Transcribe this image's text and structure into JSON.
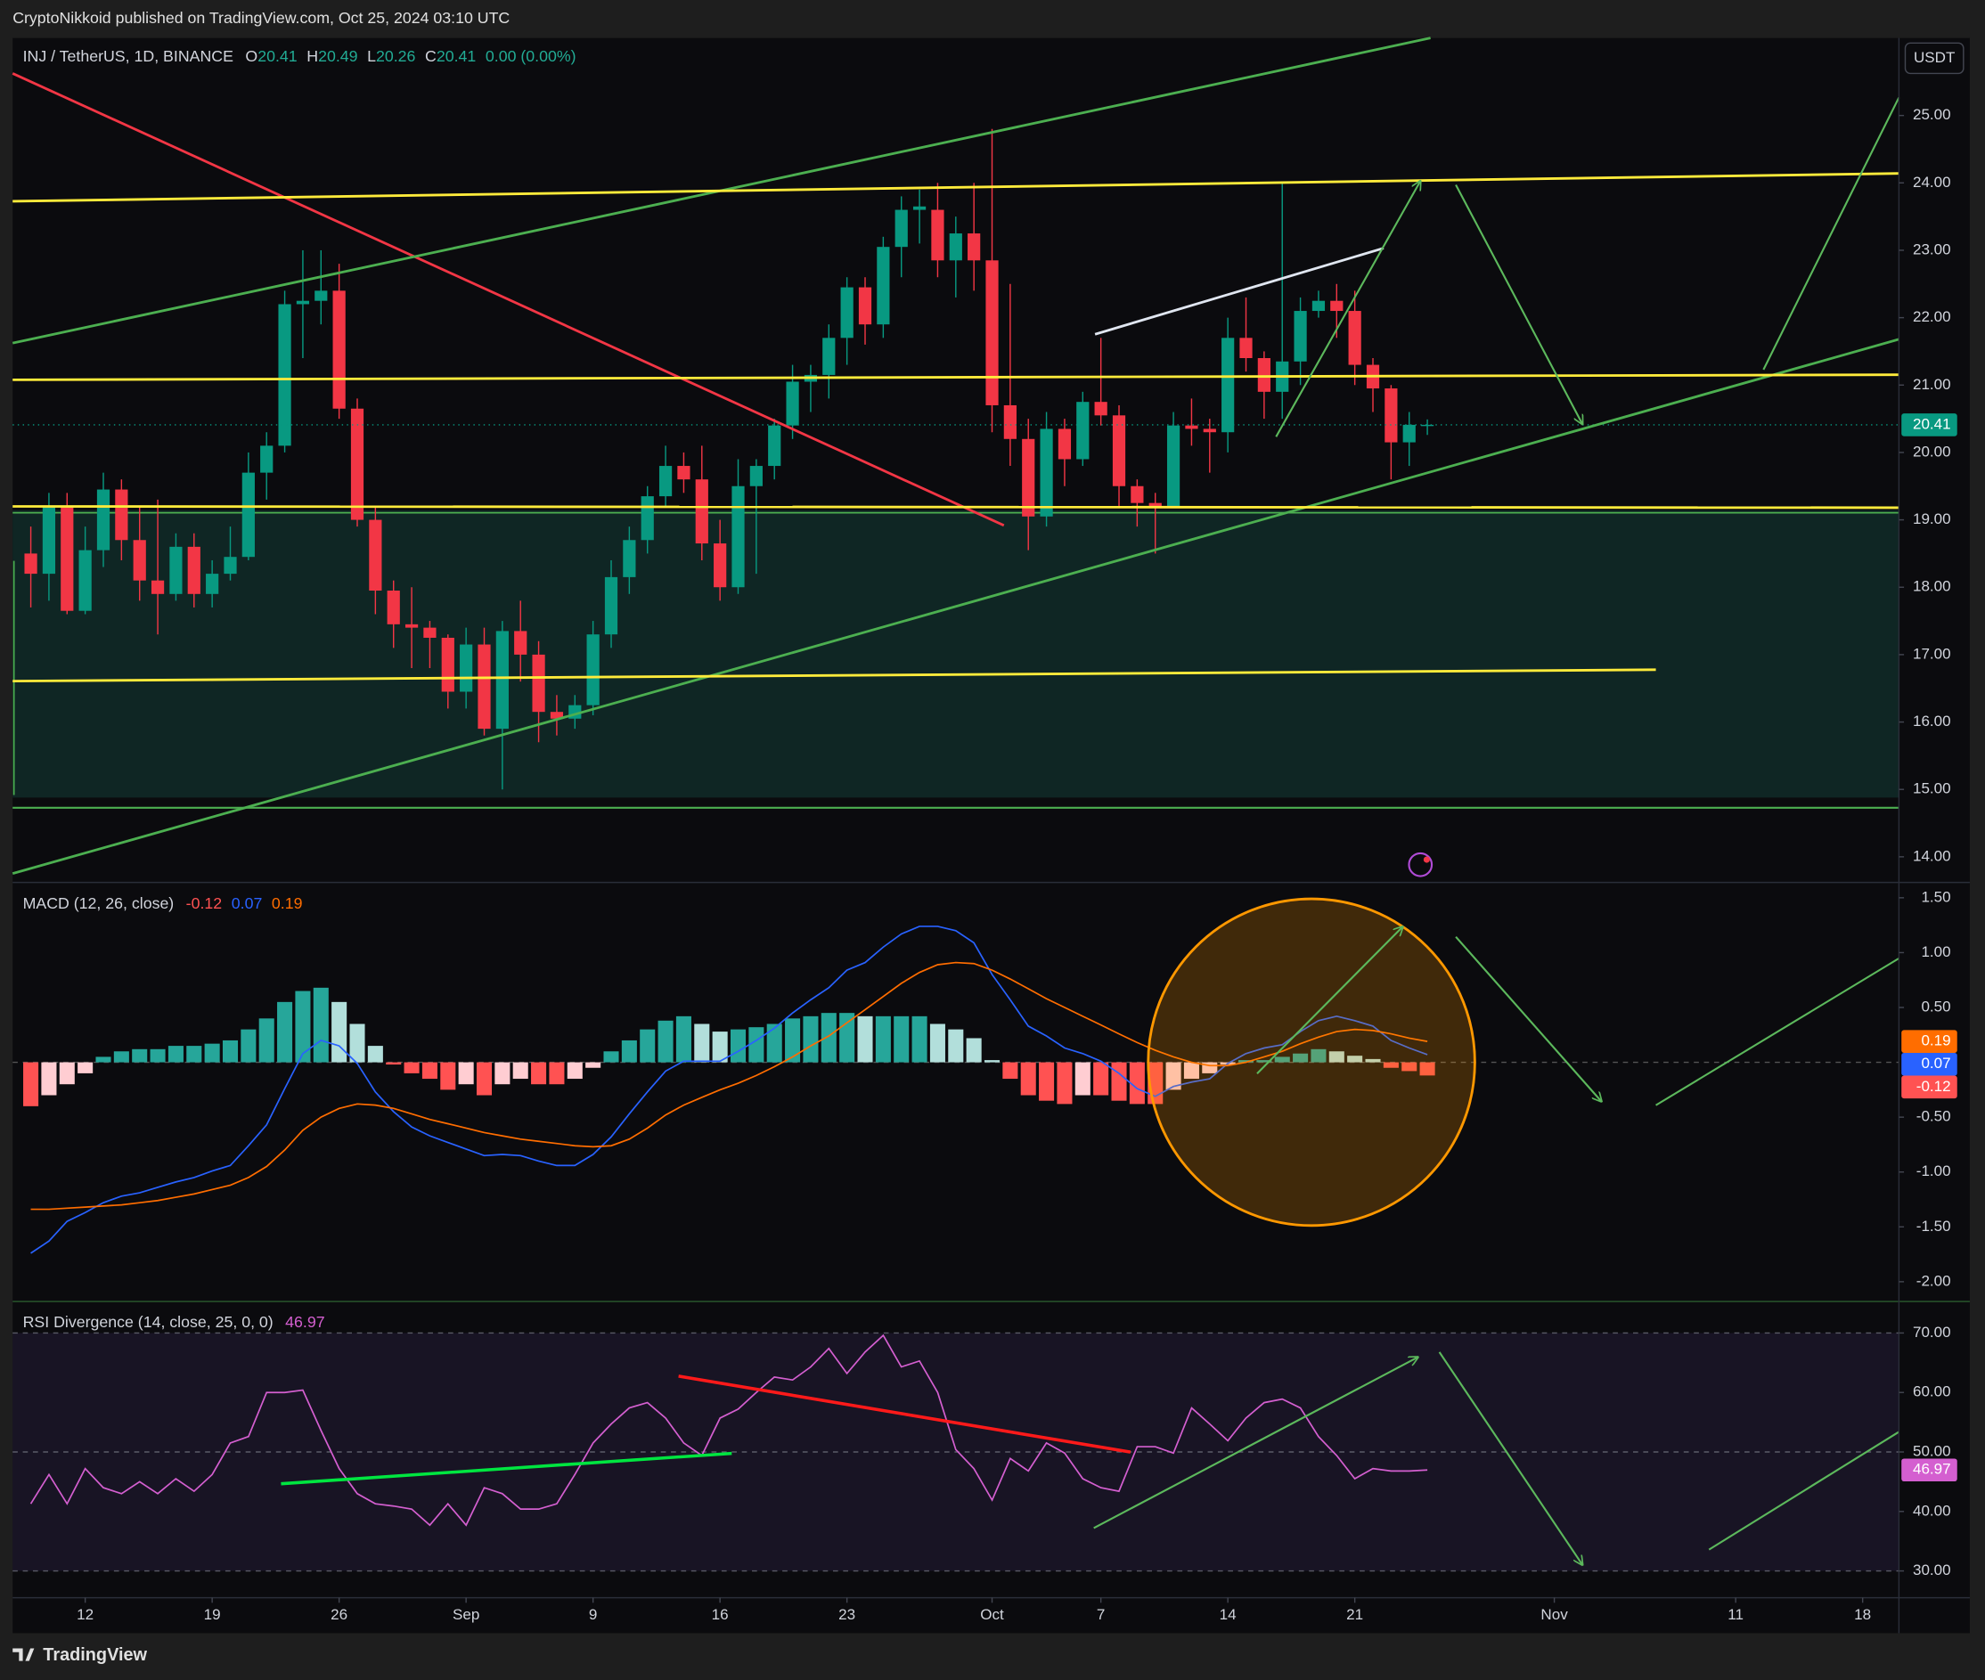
{
  "header": {
    "publisher": "CryptoNikkoid published on TradingView.com, Oct 25, 2024 03:10 UTC"
  },
  "footer": {
    "logo": "TradingView"
  },
  "chart_data": {
    "type": "candlestick",
    "title": "INJ / TetherUS, 1D, BINANCE",
    "ohlc_labels": [
      "O",
      "H",
      "L",
      "C"
    ],
    "change": "0.00 (0.00%)",
    "currency": "USDT",
    "up_color": "#089981",
    "down_color": "#f23645",
    "x": [
      "2024-08-09",
      "2024-08-10",
      "2024-08-11",
      "2024-08-12",
      "2024-08-13",
      "2024-08-14",
      "2024-08-15",
      "2024-08-16",
      "2024-08-17",
      "2024-08-18",
      "2024-08-19",
      "2024-08-20",
      "2024-08-21",
      "2024-08-22",
      "2024-08-23",
      "2024-08-24",
      "2024-08-25",
      "2024-08-26",
      "2024-08-27",
      "2024-08-28",
      "2024-08-29",
      "2024-08-30",
      "2024-08-31",
      "2024-09-01",
      "2024-09-02",
      "2024-09-03",
      "2024-09-04",
      "2024-09-05",
      "2024-09-06",
      "2024-09-07",
      "2024-09-08",
      "2024-09-09",
      "2024-09-10",
      "2024-09-11",
      "2024-09-12",
      "2024-09-13",
      "2024-09-14",
      "2024-09-15",
      "2024-09-16",
      "2024-09-17",
      "2024-09-18",
      "2024-09-19",
      "2024-09-20",
      "2024-09-21",
      "2024-09-22",
      "2024-09-23",
      "2024-09-24",
      "2024-09-25",
      "2024-09-26",
      "2024-09-27",
      "2024-09-28",
      "2024-09-29",
      "2024-09-30",
      "2024-10-01",
      "2024-10-02",
      "2024-10-03",
      "2024-10-04",
      "2024-10-05",
      "2024-10-06",
      "2024-10-07",
      "2024-10-08",
      "2024-10-09",
      "2024-10-10",
      "2024-10-11",
      "2024-10-12",
      "2024-10-13",
      "2024-10-14",
      "2024-10-15",
      "2024-10-16",
      "2024-10-17",
      "2024-10-18",
      "2024-10-19",
      "2024-10-20",
      "2024-10-21",
      "2024-10-22",
      "2024-10-23",
      "2024-10-24",
      "2024-10-25"
    ],
    "open": [
      18.5,
      18.2,
      19.2,
      17.65,
      18.55,
      19.45,
      18.7,
      18.1,
      17.9,
      18.6,
      17.9,
      18.2,
      18.45,
      19.7,
      20.1,
      22.2,
      22.25,
      22.4,
      20.65,
      19.0,
      17.95,
      17.45,
      17.4,
      17.25,
      16.45,
      17.15,
      15.9,
      17.35,
      17.0,
      16.15,
      16.05,
      16.25,
      17.3,
      18.15,
      18.7,
      19.35,
      19.8,
      19.6,
      18.65,
      18.0,
      19.5,
      19.8,
      20.4,
      21.05,
      21.15,
      21.7,
      22.45,
      21.9,
      23.05,
      23.6,
      23.6,
      22.85,
      23.25,
      22.85,
      20.7,
      20.2,
      19.05,
      20.35,
      19.9,
      20.75,
      20.55,
      19.5,
      19.25,
      19.2,
      20.4,
      20.35,
      20.3,
      21.7,
      21.4,
      20.9,
      21.35,
      22.1,
      22.25,
      22.1,
      21.3,
      20.95,
      20.15,
      20.41
    ],
    "high": [
      18.9,
      19.4,
      19.4,
      18.9,
      19.7,
      19.6,
      19.2,
      19.3,
      18.8,
      18.8,
      18.4,
      18.9,
      20.0,
      20.3,
      22.4,
      23.0,
      23.0,
      22.8,
      20.8,
      19.2,
      18.1,
      18.0,
      17.5,
      17.3,
      17.4,
      17.4,
      17.5,
      17.8,
      17.2,
      16.4,
      16.4,
      17.5,
      18.4,
      18.9,
      19.5,
      20.1,
      20.0,
      20.1,
      19.0,
      19.9,
      19.9,
      20.5,
      21.3,
      21.3,
      21.9,
      22.6,
      22.6,
      23.2,
      23.8,
      23.9,
      24.0,
      23.5,
      24.0,
      24.8,
      22.5,
      20.5,
      20.6,
      20.5,
      20.9,
      21.7,
      20.7,
      19.6,
      19.4,
      20.6,
      20.8,
      20.5,
      22.0,
      22.3,
      21.5,
      24.0,
      22.3,
      22.4,
      22.5,
      22.4,
      21.4,
      21.0,
      20.6,
      20.49
    ],
    "low": [
      17.7,
      17.8,
      17.6,
      17.6,
      18.3,
      18.4,
      17.8,
      17.3,
      17.8,
      17.7,
      17.7,
      18.1,
      18.4,
      19.3,
      20.0,
      21.4,
      21.9,
      20.5,
      18.9,
      17.6,
      17.1,
      16.8,
      16.8,
      16.2,
      16.2,
      15.8,
      15.0,
      16.6,
      15.7,
      15.8,
      15.9,
      16.1,
      17.1,
      17.9,
      18.5,
      19.2,
      19.4,
      18.4,
      17.8,
      17.9,
      18.2,
      19.6,
      20.2,
      20.6,
      20.8,
      21.3,
      21.6,
      21.7,
      22.6,
      23.1,
      22.6,
      22.3,
      22.4,
      20.3,
      19.8,
      18.55,
      18.9,
      19.5,
      19.8,
      20.4,
      19.2,
      18.9,
      18.5,
      19.2,
      20.1,
      19.7,
      20.0,
      21.2,
      20.5,
      20.5,
      21.0,
      22.0,
      21.7,
      21.0,
      20.6,
      19.6,
      19.8,
      20.26
    ],
    "close": [
      18.2,
      19.2,
      17.65,
      18.55,
      19.45,
      18.7,
      18.1,
      17.9,
      18.6,
      17.9,
      18.2,
      18.45,
      19.7,
      20.1,
      22.2,
      22.25,
      22.4,
      20.65,
      19.0,
      17.95,
      17.45,
      17.4,
      17.25,
      16.45,
      17.15,
      15.9,
      17.35,
      17.0,
      16.15,
      16.05,
      16.25,
      17.3,
      18.15,
      18.7,
      19.35,
      19.8,
      19.6,
      18.65,
      18.0,
      19.5,
      19.8,
      20.4,
      21.05,
      21.15,
      21.7,
      22.45,
      21.9,
      23.05,
      23.6,
      23.65,
      22.85,
      23.25,
      22.85,
      20.7,
      20.2,
      19.05,
      20.35,
      19.9,
      20.75,
      20.55,
      19.5,
      19.25,
      19.2,
      20.4,
      20.35,
      20.3,
      21.7,
      21.4,
      20.9,
      21.35,
      22.1,
      22.25,
      22.1,
      21.3,
      20.95,
      20.15,
      20.41,
      20.41
    ],
    "xlim": [
      "2024-08-08",
      "2024-11-20"
    ],
    "xticks": [
      {
        "value": "2024-08-12",
        "label": "12"
      },
      {
        "value": "2024-08-19",
        "label": "19"
      },
      {
        "value": "2024-08-26",
        "label": "26"
      },
      {
        "value": "2024-09-02",
        "label": "Sep"
      },
      {
        "value": "2024-09-09",
        "label": "9"
      },
      {
        "value": "2024-09-16",
        "label": "16"
      },
      {
        "value": "2024-09-23",
        "label": "23"
      },
      {
        "value": "2024-10-01",
        "label": "Oct"
      },
      {
        "value": "2024-10-07",
        "label": "7"
      },
      {
        "value": "2024-10-14",
        "label": "14"
      },
      {
        "value": "2024-10-21",
        "label": "21"
      },
      {
        "value": "2024-11-01",
        "label": "Nov"
      },
      {
        "value": "2024-11-11",
        "label": "11"
      },
      {
        "value": "2024-11-18",
        "label": "18"
      }
    ],
    "ylim": [
      13.62,
      26.15
    ],
    "yticks": [
      {
        "value": 14,
        "label": "14.00"
      },
      {
        "value": 15,
        "label": "15.00"
      },
      {
        "value": 16,
        "label": "16.00"
      },
      {
        "value": 17,
        "label": "17.00"
      },
      {
        "value": 18,
        "label": "18.00"
      },
      {
        "value": 19,
        "label": "19.00"
      },
      {
        "value": 20,
        "label": "20.00"
      },
      {
        "value": 21,
        "label": "21.00"
      },
      {
        "value": 22,
        "label": "22.00"
      },
      {
        "value": 23,
        "label": "23.00"
      },
      {
        "value": 24,
        "label": "24.00"
      },
      {
        "value": 25,
        "label": "25.00"
      }
    ],
    "indicators": [
      {
        "type": "macd",
        "title": "MACD (12, 26, close)",
        "ylim": [
          -2.18,
          1.64
        ],
        "yticks": [
          {
            "value": 1.5,
            "label": "1.50"
          },
          {
            "value": 1,
            "label": "1.00"
          },
          {
            "value": 0.5,
            "label": "0.50"
          },
          {
            "value": -0.5,
            "label": "-0.50"
          },
          {
            "value": -1,
            "label": "-1.00"
          },
          {
            "value": -1.5,
            "label": "-1.50"
          },
          {
            "value": -2,
            "label": "-2.00"
          }
        ],
        "zero_line": true,
        "histogram": {
          "colors": [
            "#26a69a",
            "#b2dfdb",
            "#ff5252",
            "#ffcdd2"
          ],
          "values": [
            -0.4,
            -0.3,
            -0.2,
            -0.1,
            0.05,
            0.1,
            0.12,
            0.12,
            0.15,
            0.15,
            0.17,
            0.2,
            0.3,
            0.4,
            0.55,
            0.65,
            0.68,
            0.55,
            0.35,
            0.15,
            -0.02,
            -0.1,
            -0.15,
            -0.25,
            -0.2,
            -0.3,
            -0.2,
            -0.15,
            -0.2,
            -0.2,
            -0.15,
            -0.05,
            0.1,
            0.2,
            0.3,
            0.38,
            0.42,
            0.35,
            0.28,
            0.3,
            0.32,
            0.35,
            0.4,
            0.42,
            0.45,
            0.45,
            0.42,
            0.42,
            0.42,
            0.42,
            0.35,
            0.3,
            0.22,
            0.02,
            -0.15,
            -0.3,
            -0.35,
            -0.38,
            -0.3,
            -0.3,
            -0.35,
            -0.38,
            -0.38,
            -0.25,
            -0.15,
            -0.1,
            -0.02,
            0.02,
            0.02,
            0.05,
            0.08,
            0.12,
            0.1,
            0.06,
            0.03,
            -0.05,
            -0.08,
            -0.12
          ]
        },
        "macd": {
          "color": "#2962ff",
          "values": [
            -1.74,
            -1.63,
            -1.45,
            -1.37,
            -1.28,
            -1.22,
            -1.19,
            -1.14,
            -1.09,
            -1.05,
            -0.99,
            -0.94,
            -0.76,
            -0.57,
            -0.24,
            0.08,
            0.2,
            0.15,
            -0.01,
            -0.27,
            -0.45,
            -0.59,
            -0.67,
            -0.73,
            -0.79,
            -0.85,
            -0.84,
            -0.85,
            -0.9,
            -0.94,
            -0.94,
            -0.84,
            -0.68,
            -0.47,
            -0.27,
            -0.08,
            0.01,
            0.01,
            0.01,
            0.1,
            0.2,
            0.31,
            0.45,
            0.57,
            0.68,
            0.84,
            0.91,
            1.05,
            1.17,
            1.24,
            1.24,
            1.2,
            1.09,
            0.8,
            0.57,
            0.33,
            0.24,
            0.13,
            0.08,
            0.01,
            -0.1,
            -0.24,
            -0.31,
            -0.22,
            -0.18,
            -0.15,
            -0.01,
            0.08,
            0.13,
            0.16,
            0.28,
            0.38,
            0.42,
            0.38,
            0.33,
            0.2,
            0.13,
            0.07
          ]
        },
        "signal": {
          "color": "#ff6d00",
          "values": [
            -1.34,
            -1.34,
            -1.33,
            -1.32,
            -1.31,
            -1.3,
            -1.28,
            -1.26,
            -1.23,
            -1.2,
            -1.16,
            -1.12,
            -1.05,
            -0.95,
            -0.8,
            -0.62,
            -0.5,
            -0.42,
            -0.38,
            -0.39,
            -0.42,
            -0.47,
            -0.52,
            -0.56,
            -0.6,
            -0.64,
            -0.67,
            -0.7,
            -0.72,
            -0.74,
            -0.76,
            -0.77,
            -0.76,
            -0.7,
            -0.6,
            -0.48,
            -0.39,
            -0.32,
            -0.25,
            -0.19,
            -0.12,
            -0.04,
            0.05,
            0.15,
            0.24,
            0.36,
            0.48,
            0.6,
            0.72,
            0.82,
            0.89,
            0.91,
            0.9,
            0.84,
            0.76,
            0.67,
            0.58,
            0.5,
            0.42,
            0.34,
            0.26,
            0.18,
            0.11,
            0.05,
            0.0,
            -0.03,
            -0.03,
            0.0,
            0.05,
            0.1,
            0.17,
            0.23,
            0.28,
            0.3,
            0.29,
            0.26,
            0.22,
            0.19
          ]
        }
      },
      {
        "type": "rsi",
        "title": "RSI Divergence (14, close, 25, 0, 0)",
        "color": "#d45fd0",
        "ylim": [
          25.5,
          75.3
        ],
        "yticks": [
          {
            "value": 30,
            "label": "30.00"
          },
          {
            "value": 40,
            "label": "40.00"
          },
          {
            "value": 50,
            "label": "50.00"
          },
          {
            "value": 60,
            "label": "60.00"
          },
          {
            "value": 70,
            "label": "70.00"
          }
        ],
        "bands": [
          30,
          50,
          70
        ],
        "values": [
          41.3,
          46.2,
          41.3,
          47.2,
          44,
          43,
          45,
          43,
          45.5,
          43.4,
          46.2,
          51.5,
          52.6,
          60,
          60,
          60.4,
          53.6,
          47.2,
          43,
          41.3,
          40.9,
          40.4,
          37.7,
          41.3,
          37.7,
          44,
          43,
          40.4,
          40.4,
          41.3,
          46.2,
          51.5,
          54.7,
          57.4,
          58.3,
          55.7,
          51.5,
          49.4,
          55.7,
          57.2,
          60,
          62.6,
          62.1,
          64.3,
          67.4,
          63.2,
          66.8,
          69.6,
          64.3,
          65.3,
          60,
          50.4,
          47.2,
          41.9,
          48.9,
          46.8,
          51.5,
          49.8,
          45.5,
          44,
          43.4,
          50.9,
          50.9,
          49.8,
          57.4,
          54.7,
          51.9,
          55.7,
          58.3,
          58.9,
          57.4,
          52.6,
          49.4,
          45.5,
          47.2,
          46.8,
          46.8,
          46.97
        ]
      }
    ]
  }
}
